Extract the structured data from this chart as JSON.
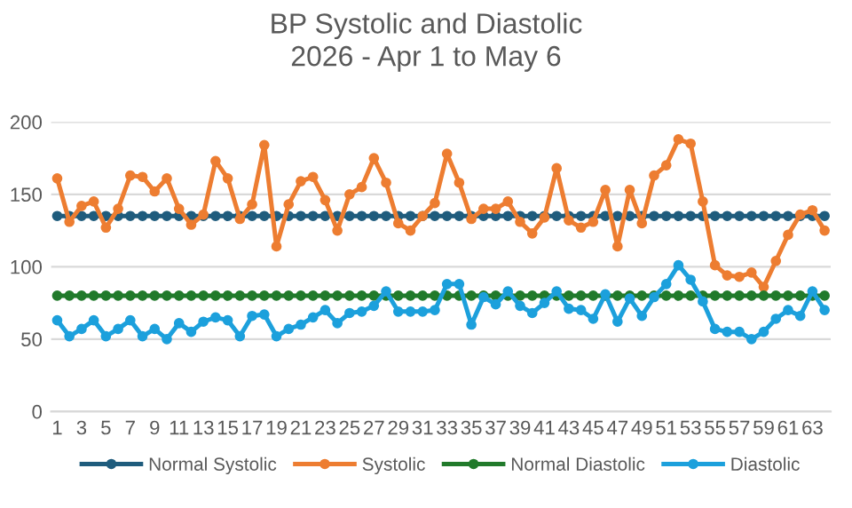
{
  "chart_data": {
    "type": "line",
    "title": "BP Systolic and Diastolic\n2026 - Apr 1 to May 6",
    "categories": [
      "1",
      null,
      "3",
      null,
      "5",
      null,
      "7",
      null,
      "9",
      null,
      "11",
      null,
      "13",
      null,
      "15",
      null,
      "17",
      null,
      "19",
      null,
      "21",
      null,
      "23",
      null,
      "25",
      null,
      "27",
      null,
      "29",
      null,
      "31",
      null,
      "33",
      null,
      "35",
      null,
      "37",
      null,
      "39",
      null,
      "41",
      null,
      "43",
      null,
      "45",
      null,
      "47",
      null,
      "49",
      null,
      "51",
      null,
      "53",
      null,
      "55",
      null,
      "57",
      null,
      "59",
      null,
      "61",
      null,
      "63",
      null
    ],
    "series": [
      {
        "name": "Normal Systolic",
        "color": "#1f5c7d",
        "values": [
          135,
          135,
          135,
          135,
          135,
          135,
          135,
          135,
          135,
          135,
          135,
          135,
          135,
          135,
          135,
          135,
          135,
          135,
          135,
          135,
          135,
          135,
          135,
          135,
          135,
          135,
          135,
          135,
          135,
          135,
          135,
          135,
          135,
          135,
          135,
          135,
          135,
          135,
          135,
          135,
          135,
          135,
          135,
          135,
          135,
          135,
          135,
          135,
          135,
          135,
          135,
          135,
          135,
          135,
          135,
          135,
          135,
          135,
          135,
          135,
          135,
          135,
          135,
          135
        ]
      },
      {
        "name": "Systolic",
        "color": "#ed7d31",
        "values": [
          161,
          131,
          142,
          145,
          127,
          140,
          163,
          162,
          152,
          161,
          140,
          129,
          136,
          173,
          161,
          133,
          143,
          184,
          114,
          143,
          159,
          162,
          146,
          125,
          150,
          155,
          175,
          158,
          130,
          125,
          135,
          144,
          178,
          158,
          133,
          140,
          140,
          145,
          131,
          123,
          134,
          168,
          132,
          127,
          131,
          153,
          114,
          153,
          130,
          163,
          170,
          188,
          185,
          145,
          101,
          94,
          93,
          96,
          86,
          104,
          122,
          136,
          139,
          125
        ]
      },
      {
        "name": "Normal Diastolic",
        "color": "#217a2b",
        "values": [
          80,
          80,
          80,
          80,
          80,
          80,
          80,
          80,
          80,
          80,
          80,
          80,
          80,
          80,
          80,
          80,
          80,
          80,
          80,
          80,
          80,
          80,
          80,
          80,
          80,
          80,
          80,
          80,
          80,
          80,
          80,
          80,
          80,
          80,
          80,
          80,
          80,
          80,
          80,
          80,
          80,
          80,
          80,
          80,
          80,
          80,
          80,
          80,
          80,
          80,
          80,
          80,
          80,
          80,
          80,
          80,
          80,
          80,
          80,
          80,
          80,
          80,
          80,
          80
        ]
      },
      {
        "name": "Diastolic",
        "color": "#1ca0dc",
        "values": [
          63,
          52,
          57,
          63,
          52,
          57,
          63,
          52,
          57,
          50,
          61,
          55,
          62,
          65,
          63,
          52,
          66,
          67,
          52,
          57,
          60,
          65,
          70,
          61,
          68,
          69,
          73,
          83,
          69,
          69,
          69,
          70,
          88,
          88,
          60,
          79,
          74,
          83,
          73,
          68,
          75,
          83,
          71,
          70,
          64,
          81,
          62,
          78,
          66,
          79,
          88,
          101,
          91,
          76,
          57,
          55,
          55,
          50,
          55,
          64,
          70,
          66,
          83,
          70
        ]
      }
    ],
    "ylim": [
      0,
      200
    ],
    "yticks": [
      0,
      50,
      100,
      150,
      200
    ],
    "grid": "y",
    "legend": "bottom",
    "marker": "circle",
    "line_style": "solid"
  }
}
